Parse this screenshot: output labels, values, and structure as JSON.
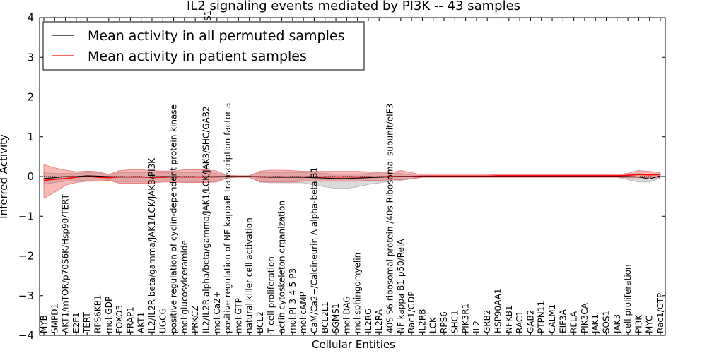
{
  "chart_data": {
    "type": "line",
    "title": "IL2 signaling events mediated by PI3K -- 43 samples",
    "xlabel": "Cellular Entities",
    "ylabel": "Inferred Activity",
    "ylim": [
      -4,
      4
    ],
    "yticks": [
      4,
      3,
      2,
      1,
      0,
      -1,
      -2,
      -3,
      -4
    ],
    "ytick_labels": [
      "4",
      "3",
      "2",
      "1",
      "0",
      "−1",
      "−2",
      "−3",
      "−4"
    ],
    "legend": {
      "position": "top-left",
      "entries": [
        {
          "label": "Mean activity in all permuted samples",
          "color": "#000000"
        },
        {
          "label": "Mean activity in patient samples",
          "color": "#ff0000"
        }
      ]
    },
    "categories": [
      "MYB",
      "SMPD1",
      "AKT1/mTOR/p70S6K/Hsp90/TERT",
      "E2F1",
      "TERT",
      "RPS6KB1",
      "mol:GDP",
      "FOXO3",
      "FRAP1",
      "AKT1",
      "IL2/IL2R beta/gamma/JAK1/LCK/JAK3/PI3K",
      "UGCG",
      "positive regulation of cyclin-dependent protein kinase",
      "mol:glucosylceramide",
      "PRKCZ",
      "IL2/IL2R alpha/beta/gamma/JAK1/LCK/JAK3/SHC/GAB2",
      "mol:Ca2+",
      "positive regulation of NF-kappaB transcription factor a",
      "mol:GTP",
      "natural killer cell activation",
      "BCL2",
      "T cell proliferation",
      "actin cytoskeleton organization",
      "mol:PI-3-4-5-P3",
      "mol:cAMP",
      "CaM/Ca2+/Calcineurin A alpha-beta B1",
      "BCL2L1",
      "SGMS1",
      "mol:DAG",
      "mol:sphingomyelin",
      "IL2RG",
      "IL2RA",
      "40S S6 ribosomal protein /40s Ribosomal subunit/eIF3",
      "NF kappa B1 p50/RelA",
      "Rac1/GDP",
      "IL2RB",
      "LCK",
      "RPS6",
      "SHC1",
      "PIK3R1",
      "IL2",
      "GRB2",
      "HSP90AA1",
      "NFKB1",
      "RAC1",
      "GAB2",
      "PTPN11",
      "CALM1",
      "EIF3A",
      "RELA",
      "PIK3CA",
      "JAK1",
      "SOS1",
      "JAK3",
      "cell proliferation",
      "PI3K",
      "MYC",
      "Rac1/GTP"
    ],
    "extra_label": "S1",
    "series": [
      {
        "name": "Mean activity in patient samples",
        "color": "#ff0000",
        "values": [
          -0.1,
          -0.07,
          -0.05,
          -0.02,
          0.01,
          -0.02,
          -0.03,
          -0.01,
          -0.01,
          -0.01,
          -0.02,
          -0.02,
          -0.01,
          -0.01,
          -0.01,
          -0.01,
          -0.01,
          0.0,
          0.0,
          0.0,
          -0.01,
          -0.01,
          -0.01,
          -0.01,
          -0.01,
          -0.01,
          -0.01,
          -0.01,
          -0.01,
          -0.01,
          -0.01,
          -0.01,
          0.0,
          0.0,
          0.0,
          0.01,
          0.01,
          0.01,
          0.01,
          0.01,
          0.01,
          0.01,
          0.02,
          0.02,
          0.02,
          0.02,
          0.02,
          0.02,
          0.02,
          0.02,
          0.02,
          0.02,
          0.02,
          0.02,
          0.03,
          0.05,
          0.04,
          0.05
        ],
        "band_low": [
          -0.55,
          -0.4,
          -0.22,
          -0.15,
          -0.12,
          -0.12,
          -0.1,
          -0.17,
          -0.17,
          -0.17,
          -0.17,
          -0.14,
          -0.14,
          -0.15,
          -0.15,
          -0.15,
          -0.14,
          -0.03,
          -0.02,
          -0.02,
          -0.14,
          -0.14,
          -0.14,
          -0.14,
          -0.12,
          -0.12,
          -0.12,
          -0.12,
          -0.12,
          -0.12,
          -0.1,
          -0.1,
          -0.08,
          -0.08,
          -0.06,
          -0.02,
          -0.02,
          -0.02,
          -0.02,
          -0.02,
          -0.02,
          -0.02,
          -0.02,
          -0.02,
          -0.02,
          -0.02,
          -0.02,
          -0.02,
          -0.02,
          -0.02,
          -0.02,
          -0.02,
          -0.02,
          -0.02,
          -0.03,
          -0.03,
          -0.03,
          -0.03
        ],
        "band_high": [
          0.3,
          0.22,
          0.16,
          0.12,
          0.14,
          0.12,
          0.05,
          0.15,
          0.17,
          0.17,
          0.15,
          0.14,
          0.14,
          0.17,
          0.17,
          0.17,
          0.14,
          0.03,
          0.02,
          0.02,
          0.14,
          0.16,
          0.16,
          0.15,
          0.13,
          0.13,
          0.13,
          0.13,
          0.13,
          0.13,
          0.12,
          0.12,
          0.1,
          0.15,
          0.1,
          0.04,
          0.04,
          0.04,
          0.04,
          0.04,
          0.04,
          0.04,
          0.05,
          0.05,
          0.05,
          0.05,
          0.05,
          0.05,
          0.05,
          0.05,
          0.05,
          0.05,
          0.05,
          0.05,
          0.08,
          0.15,
          0.13,
          0.1
        ]
      },
      {
        "name": "Mean activity in all permuted samples",
        "color": "#000000",
        "values": [
          -0.05,
          -0.03,
          0.0,
          0.0,
          0.02,
          0.01,
          0.0,
          -0.01,
          -0.01,
          -0.01,
          -0.01,
          0.0,
          0.0,
          -0.01,
          -0.01,
          -0.01,
          0.0,
          0.0,
          0.0,
          0.0,
          -0.01,
          -0.02,
          -0.02,
          -0.02,
          -0.02,
          -0.03,
          -0.04,
          -0.05,
          -0.05,
          -0.04,
          -0.03,
          -0.02,
          -0.01,
          0.0,
          0.0,
          0.0,
          0.0,
          0.0,
          0.0,
          0.0,
          0.0,
          0.0,
          0.0,
          0.0,
          0.0,
          0.0,
          0.0,
          0.0,
          0.0,
          0.0,
          0.0,
          0.0,
          0.0,
          0.0,
          0.0,
          -0.01,
          -0.06,
          0.02
        ],
        "band_low": [
          -0.2,
          -0.15,
          -0.12,
          -0.1,
          -0.1,
          -0.12,
          -0.1,
          -0.14,
          -0.14,
          -0.14,
          -0.14,
          -0.12,
          -0.12,
          -0.14,
          -0.14,
          -0.14,
          -0.12,
          -0.02,
          -0.02,
          -0.02,
          -0.14,
          -0.16,
          -0.16,
          -0.16,
          -0.16,
          -0.22,
          -0.26,
          -0.3,
          -0.3,
          -0.26,
          -0.2,
          -0.16,
          -0.12,
          -0.1,
          -0.06,
          -0.02,
          -0.02,
          -0.02,
          -0.02,
          -0.02,
          -0.02,
          -0.02,
          -0.02,
          -0.02,
          -0.02,
          -0.02,
          -0.02,
          -0.02,
          -0.02,
          -0.02,
          -0.02,
          -0.02,
          -0.02,
          -0.02,
          -0.08,
          -0.14,
          -0.14,
          -0.04
        ],
        "band_high": [
          0.1,
          0.08,
          0.08,
          0.08,
          0.1,
          0.1,
          0.06,
          0.1,
          0.1,
          0.1,
          0.1,
          0.1,
          0.1,
          0.1,
          0.1,
          0.1,
          0.08,
          0.02,
          0.02,
          0.02,
          0.1,
          0.1,
          0.1,
          0.1,
          0.1,
          0.1,
          0.08,
          0.06,
          0.06,
          0.06,
          0.08,
          0.1,
          0.08,
          0.08,
          0.04,
          0.02,
          0.02,
          0.02,
          0.02,
          0.02,
          0.02,
          0.02,
          0.02,
          0.02,
          0.02,
          0.02,
          0.02,
          0.02,
          0.02,
          0.02,
          0.02,
          0.02,
          0.02,
          0.02,
          0.05,
          0.08,
          0.04,
          0.06
        ]
      }
    ]
  }
}
